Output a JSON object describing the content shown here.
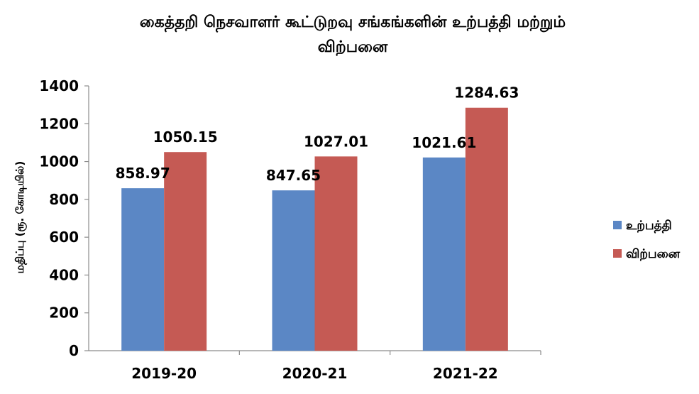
{
  "chart_data": {
    "type": "bar",
    "title_lines": [
      "கைத்தறி நெசவாளர் கூட்டுறவு சங்கங்களின் உற்பத்தி மற்றும்",
      "விற்பனை"
    ],
    "categories": [
      "2019-20",
      "2020-21",
      "2021-22"
    ],
    "series": [
      {
        "name": "உற்பத்தி",
        "values": [
          858.97,
          847.65,
          1021.61
        ],
        "value_labels": [
          "858.97",
          "847.65",
          "1021.61"
        ],
        "color": "#5B87C5"
      },
      {
        "name": "விற்பனை",
        "values": [
          1050.15,
          1027.01,
          1284.63
        ],
        "value_labels": [
          "1050.15",
          "1027.01",
          "1284.63"
        ],
        "color": "#C55A54"
      }
    ],
    "xlabel": "",
    "ylabel": "மதிப்பு (ரூ. கோடியில்)",
    "ylim": [
      0,
      1400
    ],
    "yticks": [
      "0",
      "200",
      "400",
      "600",
      "800",
      "1000",
      "1200",
      "1400"
    ],
    "grid": false,
    "legend_position": "right"
  }
}
